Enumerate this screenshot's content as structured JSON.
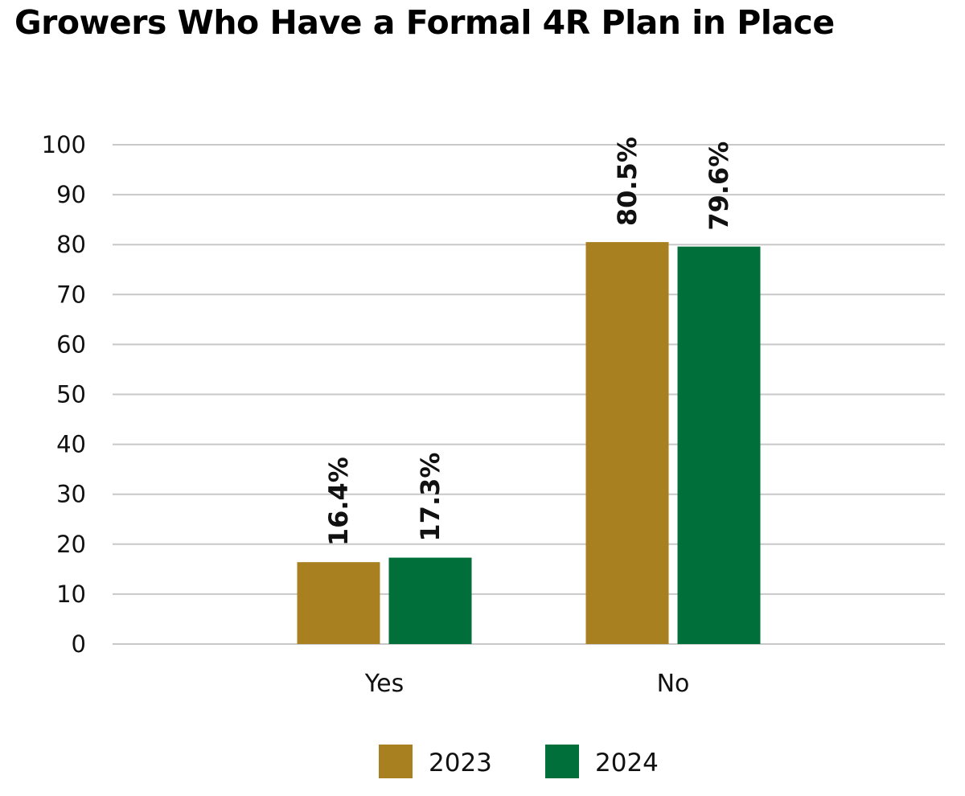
{
  "chart_data": {
    "type": "bar",
    "title": "Growers Who Have a Formal 4R Plan in Place",
    "xlabel": "",
    "ylabel": "",
    "categories": [
      "Yes",
      "No"
    ],
    "series": [
      {
        "name": "2023",
        "values": [
          16.4,
          80.5
        ],
        "labels": [
          "16.4%",
          "80.5%"
        ],
        "color": "#a88020"
      },
      {
        "name": "2024",
        "values": [
          17.3,
          79.6
        ],
        "labels": [
          "17.3%",
          "79.6%"
        ],
        "color": "#006f3a"
      }
    ],
    "ylim": [
      0,
      100
    ],
    "yticks": [
      0,
      10,
      20,
      30,
      40,
      50,
      60,
      70,
      80,
      90,
      100
    ],
    "grid": true,
    "legend": "bottom-center"
  }
}
